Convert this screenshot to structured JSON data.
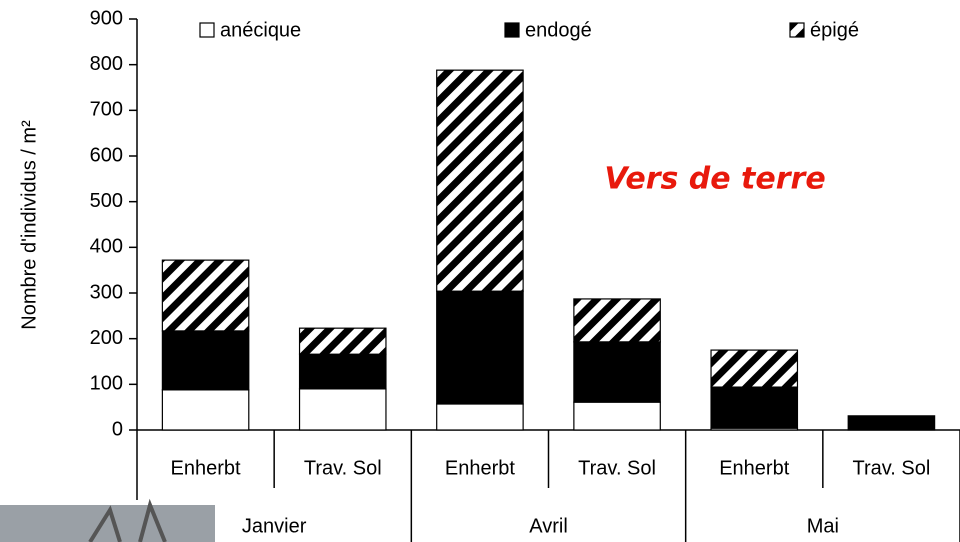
{
  "chart_data": {
    "type": "stacked-bar",
    "title": "Vers de terre",
    "y_label": "Nombre d'individus / m²",
    "categories": [
      "Enherbt",
      "Trav. Sol",
      "Enherbt",
      "Trav. Sol",
      "Enherbt",
      "Trav. Sol"
    ],
    "groups": [
      "Janvier",
      "Avril",
      "Mai"
    ],
    "series": [
      {
        "name": "anécique",
        "color": "#ffffff",
        "values": [
          88,
          90,
          57,
          61,
          4,
          0
        ]
      },
      {
        "name": "endogé",
        "color": "#000000",
        "values": [
          129,
          76,
          247,
          132,
          90,
          31
        ]
      },
      {
        "name": "épigé",
        "color": "#000000",
        "pattern": "diagonal-stripes",
        "values": [
          155,
          57,
          484,
          94,
          81,
          0
        ]
      }
    ],
    "ylim": [
      0,
      900
    ],
    "yticks": [
      0,
      100,
      200,
      300,
      400,
      500,
      600,
      700,
      800,
      900
    ],
    "grid": false,
    "legend": "top"
  }
}
